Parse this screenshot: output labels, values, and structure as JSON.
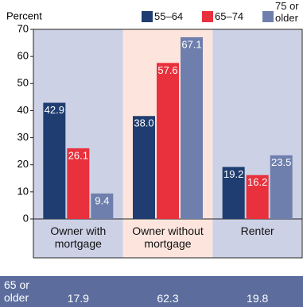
{
  "chart_data": {
    "type": "bar",
    "ylabel": "Percent",
    "categories": [
      "Owner with mortgage",
      "Owner without mortgage",
      "Renter"
    ],
    "series": [
      {
        "name": "55–64",
        "color": "#1f3d70",
        "values": [
          42.9,
          38.0,
          19.2
        ],
        "value_labels": [
          "42.9",
          "38.0",
          "19.2"
        ]
      },
      {
        "name": "65–74",
        "color": "#e8313c",
        "values": [
          26.1,
          57.6,
          16.2
        ],
        "value_labels": [
          "26.1",
          "57.6",
          "16.2"
        ]
      },
      {
        "name": "75 or older",
        "color": "#6f7fad",
        "values": [
          9.4,
          67.1,
          23.5
        ],
        "value_labels": [
          "9.4",
          "67.1",
          "23.5"
        ]
      }
    ],
    "ylim": [
      0,
      70
    ],
    "yticks": [
      0,
      10,
      20,
      30,
      40,
      50,
      60,
      70
    ]
  },
  "table": {
    "row_label": "65 or older",
    "values": [
      17.9,
      62.3,
      19.8
    ]
  }
}
